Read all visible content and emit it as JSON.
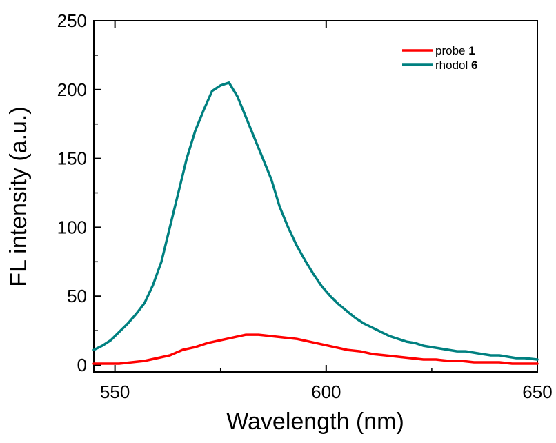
{
  "chart_data": {
    "type": "line",
    "title": "",
    "xlabel": "Wavelength (nm)",
    "ylabel": "FL intensity (a.u.)",
    "xlim": [
      545,
      650
    ],
    "ylim": [
      -5,
      250
    ],
    "x_ticks": [
      550,
      600,
      650
    ],
    "y_ticks": [
      0,
      50,
      100,
      150,
      200,
      250
    ],
    "grid": false,
    "legend_position": "top-right",
    "series": [
      {
        "name": "probe",
        "name_bold_suffix": "1",
        "color": "#ff0000",
        "points": [
          [
            545,
            1
          ],
          [
            548,
            1
          ],
          [
            551,
            1
          ],
          [
            554,
            2
          ],
          [
            557,
            3
          ],
          [
            560,
            5
          ],
          [
            563,
            7
          ],
          [
            566,
            11
          ],
          [
            569,
            13
          ],
          [
            572,
            16
          ],
          [
            575,
            18
          ],
          [
            578,
            20
          ],
          [
            581,
            22
          ],
          [
            584,
            22
          ],
          [
            587,
            21
          ],
          [
            590,
            20
          ],
          [
            593,
            19
          ],
          [
            596,
            17
          ],
          [
            599,
            15
          ],
          [
            602,
            13
          ],
          [
            605,
            11
          ],
          [
            608,
            10
          ],
          [
            611,
            8
          ],
          [
            614,
            7
          ],
          [
            617,
            6
          ],
          [
            620,
            5
          ],
          [
            623,
            4
          ],
          [
            626,
            4
          ],
          [
            629,
            3
          ],
          [
            632,
            3
          ],
          [
            635,
            2
          ],
          [
            638,
            2
          ],
          [
            641,
            2
          ],
          [
            644,
            1
          ],
          [
            647,
            1
          ],
          [
            650,
            1
          ]
        ]
      },
      {
        "name": "rhodol",
        "name_bold_suffix": "6",
        "color": "#008080",
        "points": [
          [
            545,
            11
          ],
          [
            547,
            14
          ],
          [
            549,
            18
          ],
          [
            551,
            24
          ],
          [
            553,
            30
          ],
          [
            555,
            37
          ],
          [
            557,
            45
          ],
          [
            559,
            58
          ],
          [
            561,
            75
          ],
          [
            563,
            100
          ],
          [
            565,
            125
          ],
          [
            567,
            150
          ],
          [
            569,
            170
          ],
          [
            571,
            185
          ],
          [
            573,
            199
          ],
          [
            575,
            203
          ],
          [
            577,
            205
          ],
          [
            579,
            195
          ],
          [
            581,
            180
          ],
          [
            583,
            165
          ],
          [
            585,
            150
          ],
          [
            587,
            135
          ],
          [
            589,
            115
          ],
          [
            591,
            100
          ],
          [
            593,
            87
          ],
          [
            595,
            76
          ],
          [
            597,
            66
          ],
          [
            599,
            57
          ],
          [
            601,
            50
          ],
          [
            603,
            44
          ],
          [
            605,
            39
          ],
          [
            607,
            34
          ],
          [
            609,
            30
          ],
          [
            611,
            27
          ],
          [
            613,
            24
          ],
          [
            615,
            21
          ],
          [
            617,
            19
          ],
          [
            619,
            17
          ],
          [
            621,
            16
          ],
          [
            623,
            14
          ],
          [
            625,
            13
          ],
          [
            627,
            12
          ],
          [
            629,
            11
          ],
          [
            631,
            10
          ],
          [
            633,
            10
          ],
          [
            635,
            9
          ],
          [
            637,
            8
          ],
          [
            639,
            7
          ],
          [
            641,
            7
          ],
          [
            643,
            6
          ],
          [
            645,
            5
          ],
          [
            647,
            5
          ],
          [
            650,
            4
          ]
        ]
      }
    ]
  }
}
